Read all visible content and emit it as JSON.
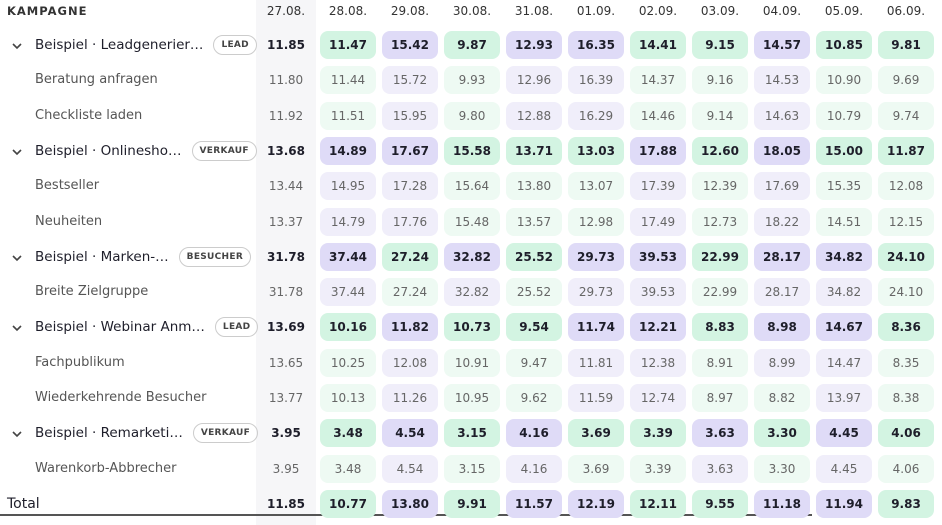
{
  "header": {
    "campaign": "KAMPAGNE",
    "dates": [
      "27.08.",
      "28.08.",
      "29.08.",
      "30.08.",
      "31.08.",
      "01.09.",
      "02.09.",
      "03.09.",
      "04.09.",
      "05.09.",
      "06.09."
    ]
  },
  "groups": [
    {
      "label": "Beispiel · Leadgenerier…",
      "badge": "LEAD",
      "values": [
        "11.85",
        "11.47",
        "15.42",
        "9.87",
        "12.93",
        "16.35",
        "14.41",
        "9.15",
        "14.57",
        "10.85",
        "9.81"
      ],
      "children": [
        {
          "label": "Beratung anfragen",
          "values": [
            "11.80",
            "11.44",
            "15.72",
            "9.93",
            "12.96",
            "16.39",
            "14.37",
            "9.16",
            "14.53",
            "10.90",
            "9.69"
          ]
        },
        {
          "label": "Checkliste laden",
          "values": [
            "11.92",
            "11.51",
            "15.95",
            "9.80",
            "12.88",
            "16.29",
            "14.46",
            "9.14",
            "14.63",
            "10.79",
            "9.74"
          ]
        }
      ]
    },
    {
      "label": "Beispiel · Onlinesho…",
      "badge": "VERKAUF",
      "values": [
        "13.68",
        "14.89",
        "17.67",
        "15.58",
        "13.71",
        "13.03",
        "17.88",
        "12.60",
        "18.05",
        "15.00",
        "11.87"
      ],
      "children": [
        {
          "label": "Bestseller",
          "values": [
            "13.44",
            "14.95",
            "17.28",
            "15.64",
            "13.80",
            "13.07",
            "17.39",
            "12.39",
            "17.69",
            "15.35",
            "12.08"
          ]
        },
        {
          "label": "Neuheiten",
          "values": [
            "13.37",
            "14.79",
            "17.76",
            "15.48",
            "13.57",
            "12.98",
            "17.49",
            "12.73",
            "18.22",
            "14.51",
            "12.15"
          ]
        }
      ]
    },
    {
      "label": "Beispiel · Marken-…",
      "badge": "BESUCHER",
      "values": [
        "31.78",
        "37.44",
        "27.24",
        "32.82",
        "25.52",
        "29.73",
        "39.53",
        "22.99",
        "28.17",
        "34.82",
        "24.10"
      ],
      "children": [
        {
          "label": "Breite Zielgruppe",
          "values": [
            "31.78",
            "37.44",
            "27.24",
            "32.82",
            "25.52",
            "29.73",
            "39.53",
            "22.99",
            "28.17",
            "34.82",
            "24.10"
          ]
        }
      ]
    },
    {
      "label": "Beispiel · Webinar Anm…",
      "badge": "LEAD",
      "values": [
        "13.69",
        "10.16",
        "11.82",
        "10.73",
        "9.54",
        "11.74",
        "12.21",
        "8.83",
        "8.98",
        "14.67",
        "8.36"
      ],
      "children": [
        {
          "label": "Fachpublikum",
          "values": [
            "13.65",
            "10.25",
            "12.08",
            "10.91",
            "9.47",
            "11.81",
            "12.38",
            "8.91",
            "8.99",
            "14.47",
            "8.35"
          ]
        },
        {
          "label": "Wiederkehrende Besucher",
          "values": [
            "13.77",
            "10.13",
            "11.26",
            "10.95",
            "9.62",
            "11.59",
            "12.74",
            "8.97",
            "8.82",
            "13.97",
            "8.38"
          ]
        }
      ]
    },
    {
      "label": "Beispiel · Remarketi…",
      "badge": "VERKAUF",
      "values": [
        "3.95",
        "3.48",
        "4.54",
        "3.15",
        "4.16",
        "3.69",
        "3.39",
        "3.63",
        "3.30",
        "4.45",
        "4.06"
      ],
      "children": [
        {
          "label": "Warenkorb-Abbrecher",
          "values": [
            "3.95",
            "3.48",
            "4.54",
            "3.15",
            "4.16",
            "3.69",
            "3.39",
            "3.63",
            "3.30",
            "4.45",
            "4.06"
          ]
        }
      ]
    }
  ],
  "total": {
    "label": "Total",
    "values": [
      "11.85",
      "10.77",
      "13.80",
      "9.91",
      "11.57",
      "12.19",
      "12.11",
      "9.55",
      "11.18",
      "11.94",
      "9.83"
    ]
  }
}
